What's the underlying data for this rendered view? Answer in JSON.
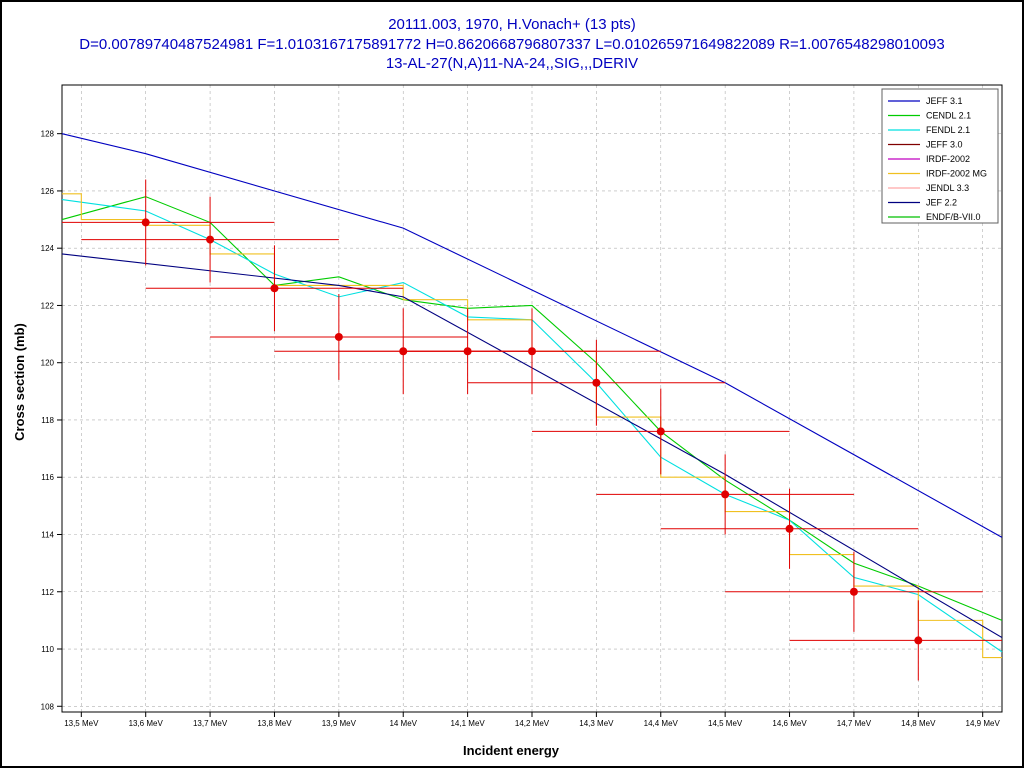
{
  "chart_data": {
    "type": "line",
    "title_lines": [
      "20111.003, 1970, H.Vonach+ (13 pts)",
      "D=0.00789740487524981 F=1.0103167175891772 H=0.8620668796807337 L=0.010265971649822089 R=1.0076548298010093",
      "13-AL-27(N,A)11-NA-24,,SIG,,,DERIV"
    ],
    "xlabel": "Incident energy",
    "ylabel": "Cross section (mb)",
    "xlim": [
      13.47,
      14.93
    ],
    "ylim": [
      107.8,
      129.7
    ],
    "x_ticks": [
      {
        "v": 13.5,
        "label": "13,5 MeV"
      },
      {
        "v": 13.6,
        "label": "13,6 MeV"
      },
      {
        "v": 13.7,
        "label": "13,7 MeV"
      },
      {
        "v": 13.8,
        "label": "13,8 MeV"
      },
      {
        "v": 13.9,
        "label": "13,9 MeV"
      },
      {
        "v": 14.0,
        "label": "14 MeV"
      },
      {
        "v": 14.1,
        "label": "14,1 MeV"
      },
      {
        "v": 14.2,
        "label": "14,2 MeV"
      },
      {
        "v": 14.3,
        "label": "14,3 MeV"
      },
      {
        "v": 14.4,
        "label": "14,4 MeV"
      },
      {
        "v": 14.5,
        "label": "14,5 MeV"
      },
      {
        "v": 14.6,
        "label": "14,6 MeV"
      },
      {
        "v": 14.7,
        "label": "14,7 MeV"
      },
      {
        "v": 14.8,
        "label": "14,8 MeV"
      },
      {
        "v": 14.9,
        "label": "14,9 MeV"
      }
    ],
    "y_ticks": [
      108,
      110,
      112,
      114,
      116,
      118,
      120,
      122,
      124,
      126,
      128
    ],
    "grid": true,
    "legend_position": "top-right",
    "series": [
      {
        "name": "JEFF 3.1",
        "color": "#0000c0",
        "step": false,
        "x": [
          13.47,
          13.6,
          14.0,
          14.5,
          14.93
        ],
        "y": [
          128.0,
          127.3,
          124.7,
          119.3,
          113.9
        ]
      },
      {
        "name": "CENDL 2.1",
        "color": "#00cc00",
        "step": false,
        "x": [
          13.47,
          13.6,
          13.7,
          13.8,
          13.9,
          14.0,
          14.1,
          14.2,
          14.3,
          14.4,
          14.5,
          14.6,
          14.7,
          14.8,
          14.93
        ],
        "y": [
          125.0,
          125.8,
          124.9,
          122.7,
          123.0,
          122.2,
          121.9,
          122.0,
          120.0,
          117.6,
          115.9,
          114.5,
          113.0,
          112.2,
          111.0
        ]
      },
      {
        "name": "FENDL 2.1",
        "color": "#00e0e0",
        "step": false,
        "x": [
          13.47,
          13.6,
          13.7,
          13.8,
          13.9,
          14.0,
          14.1,
          14.2,
          14.3,
          14.4,
          14.5,
          14.6,
          14.7,
          14.8,
          14.93
        ],
        "y": [
          125.7,
          125.3,
          124.3,
          123.1,
          122.3,
          122.8,
          121.6,
          121.5,
          119.3,
          116.7,
          115.4,
          114.5,
          112.5,
          111.9,
          109.9
        ]
      },
      {
        "name": "JEFF 3.0",
        "color": "#800000",
        "step": false,
        "x": [],
        "y": []
      },
      {
        "name": "IRDF-2002",
        "color": "#c000c0",
        "step": false,
        "x": [],
        "y": []
      },
      {
        "name": "IRDF-2002 MG",
        "color": "#f0c020",
        "step": true,
        "x": [
          13.47,
          13.5,
          13.6,
          13.7,
          13.8,
          13.9,
          14.0,
          14.1,
          14.2,
          14.3,
          14.4,
          14.5,
          14.6,
          14.7,
          14.8,
          14.9,
          14.93
        ],
        "y": [
          125.9,
          125.0,
          124.8,
          123.8,
          122.7,
          122.7,
          122.2,
          121.5,
          120.4,
          118.1,
          116.0,
          114.8,
          113.3,
          112.2,
          111.0,
          109.7,
          109.7
        ]
      },
      {
        "name": "JENDL 3.3",
        "color": "#ffa8a8",
        "step": false,
        "x": [],
        "y": []
      },
      {
        "name": "JEF 2.2",
        "color": "#000080",
        "step": false,
        "x": [
          13.47,
          13.9,
          14.0,
          14.5,
          14.93
        ],
        "y": [
          123.8,
          122.7,
          122.3,
          116.1,
          110.4
        ]
      },
      {
        "name": "ENDF/B-VII.0",
        "color": "#00c000",
        "step": false,
        "x": [],
        "y": []
      }
    ],
    "experimental": {
      "name": "20111.003",
      "color": "#e00000",
      "points": [
        {
          "x": 13.6,
          "y": 124.9,
          "x_lo": 13.47,
          "x_hi": 13.8,
          "y_err": 1.5
        },
        {
          "x": 13.7,
          "y": 124.3,
          "x_lo": 13.5,
          "x_hi": 13.9,
          "y_err": 1.5
        },
        {
          "x": 13.8,
          "y": 122.6,
          "x_lo": 13.6,
          "x_hi": 14.0,
          "y_err": 1.5
        },
        {
          "x": 13.9,
          "y": 120.9,
          "x_lo": 13.7,
          "x_hi": 14.1,
          "y_err": 1.5
        },
        {
          "x": 14.0,
          "y": 120.4,
          "x_lo": 13.8,
          "x_hi": 14.2,
          "y_err": 1.5
        },
        {
          "x": 14.1,
          "y": 120.4,
          "x_lo": 13.9,
          "x_hi": 14.3,
          "y_err": 1.5
        },
        {
          "x": 14.2,
          "y": 120.4,
          "x_lo": 14.0,
          "x_hi": 14.4,
          "y_err": 1.5
        },
        {
          "x": 14.3,
          "y": 119.3,
          "x_lo": 14.1,
          "x_hi": 14.5,
          "y_err": 1.5
        },
        {
          "x": 14.4,
          "y": 117.6,
          "x_lo": 14.2,
          "x_hi": 14.6,
          "y_err": 1.5
        },
        {
          "x": 14.5,
          "y": 115.4,
          "x_lo": 14.3,
          "x_hi": 14.7,
          "y_err": 1.4
        },
        {
          "x": 14.6,
          "y": 114.2,
          "x_lo": 14.4,
          "x_hi": 14.8,
          "y_err": 1.4
        },
        {
          "x": 14.7,
          "y": 112.0,
          "x_lo": 14.5,
          "x_hi": 14.9,
          "y_err": 1.4
        },
        {
          "x": 14.8,
          "y": 110.3,
          "x_lo": 14.6,
          "x_hi": 14.93,
          "y_err": 1.4
        }
      ]
    }
  }
}
